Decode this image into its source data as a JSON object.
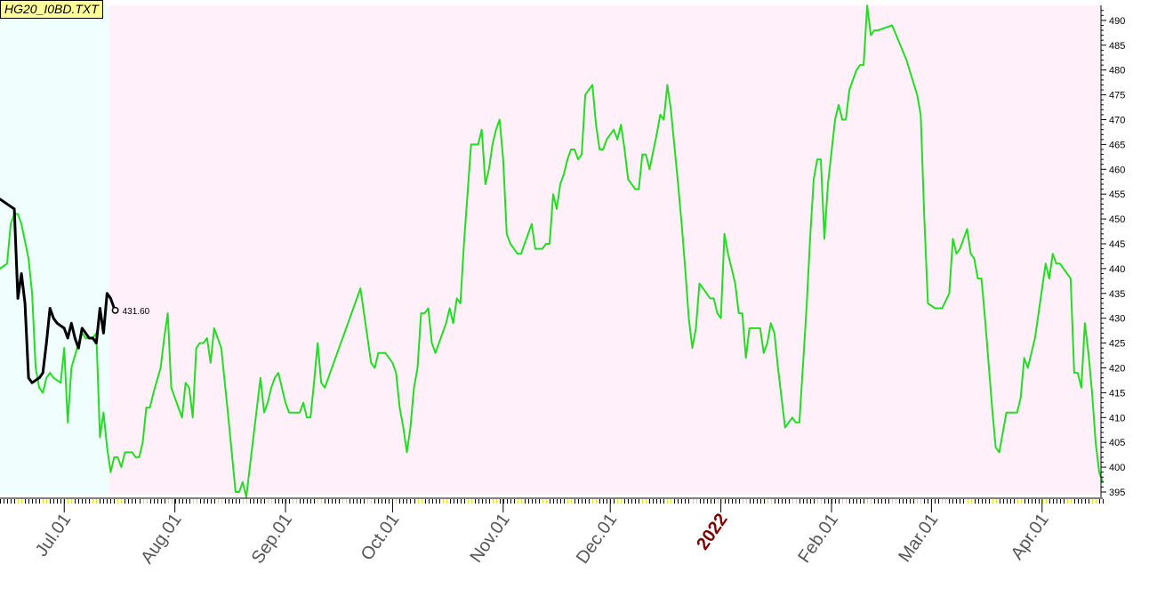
{
  "title": "HG20_I0BD.TXT",
  "chart_data": {
    "type": "line",
    "ylim": [
      395,
      492
    ],
    "y_ticks": [
      395,
      400,
      405,
      410,
      415,
      420,
      425,
      430,
      435,
      440,
      445,
      450,
      455,
      460,
      465,
      470,
      475,
      480,
      485,
      490
    ],
    "x_labels": [
      {
        "label": "Jul.01",
        "day": 0
      },
      {
        "label": "Aug.01",
        "day": 31
      },
      {
        "label": "Sep.01",
        "day": 62
      },
      {
        "label": "Oct.01",
        "day": 92
      },
      {
        "label": "Nov.01",
        "day": 123
      },
      {
        "label": "Dec.01",
        "day": 153
      },
      {
        "label": "2022",
        "day": 184,
        "year": true
      },
      {
        "label": "Feb.01",
        "day": 215
      },
      {
        "label": "Mar.01",
        "day": 243
      },
      {
        "label": "Apr.01",
        "day": 274
      }
    ],
    "colors": {
      "main_series": "#22dd22",
      "overlay_series": "#000000",
      "background_main": "#fff0fa",
      "background_overlay": "#f0fffe"
    },
    "last_value_label": "431.60",
    "series": [
      {
        "color": "#22dd22",
        "points": [
          [
            -18,
            440
          ],
          [
            -16,
            441
          ],
          [
            -15,
            449
          ],
          [
            -14,
            451
          ],
          [
            -13,
            451
          ],
          [
            -12,
            449
          ],
          [
            -10,
            442
          ],
          [
            -9,
            435
          ],
          [
            -8,
            420
          ],
          [
            -7,
            416
          ],
          [
            -6,
            415
          ],
          [
            -5,
            418
          ],
          [
            -4,
            419
          ],
          [
            -3,
            418
          ],
          [
            -1,
            417
          ],
          [
            0,
            424
          ],
          [
            1,
            409
          ],
          [
            2,
            420
          ],
          [
            4,
            425
          ],
          [
            5,
            427
          ],
          [
            6,
            426
          ],
          [
            7,
            426
          ],
          [
            8,
            426
          ],
          [
            9,
            427
          ],
          [
            10,
            406
          ],
          [
            11,
            411
          ],
          [
            12,
            404
          ],
          [
            13,
            399
          ],
          [
            14,
            402
          ],
          [
            15,
            402
          ],
          [
            16,
            400
          ],
          [
            17,
            403
          ],
          [
            18,
            403
          ],
          [
            19,
            403
          ],
          [
            20,
            402
          ],
          [
            21,
            402
          ],
          [
            22,
            405
          ],
          [
            23,
            412
          ],
          [
            24,
            412
          ],
          [
            25,
            415
          ],
          [
            27,
            420
          ],
          [
            28,
            426
          ],
          [
            29,
            431
          ],
          [
            30,
            416
          ],
          [
            31,
            414
          ],
          [
            32,
            412
          ],
          [
            33,
            410
          ],
          [
            34,
            417
          ],
          [
            35,
            416
          ],
          [
            36,
            410
          ],
          [
            37,
            424
          ],
          [
            38,
            425
          ],
          [
            39,
            425
          ],
          [
            40,
            426
          ],
          [
            41,
            421
          ],
          [
            42,
            428
          ],
          [
            43,
            426
          ],
          [
            44,
            424
          ],
          [
            46,
            410
          ],
          [
            48,
            395
          ],
          [
            49,
            395
          ],
          [
            50,
            397
          ],
          [
            51,
            394
          ],
          [
            52,
            400
          ],
          [
            53,
            406
          ],
          [
            55,
            418
          ],
          [
            56,
            411
          ],
          [
            57,
            413
          ],
          [
            58,
            416
          ],
          [
            59,
            418
          ],
          [
            60,
            419
          ],
          [
            61,
            416
          ],
          [
            62,
            413
          ],
          [
            63,
            411
          ],
          [
            64,
            411
          ],
          [
            65,
            411
          ],
          [
            66,
            411
          ],
          [
            67,
            413
          ],
          [
            68,
            410
          ],
          [
            69,
            410
          ],
          [
            70,
            417
          ],
          [
            71,
            425
          ],
          [
            72,
            417
          ],
          [
            73,
            416
          ],
          [
            74,
            418
          ],
          [
            75,
            420
          ],
          [
            77,
            424
          ],
          [
            79,
            428
          ],
          [
            81,
            432
          ],
          [
            82,
            434
          ],
          [
            83,
            436
          ],
          [
            84,
            431
          ],
          [
            85,
            426
          ],
          [
            86,
            421
          ],
          [
            87,
            420
          ],
          [
            88,
            423
          ],
          [
            89,
            423
          ],
          [
            90,
            423
          ],
          [
            91,
            422
          ],
          [
            92,
            421
          ],
          [
            93,
            419
          ],
          [
            94,
            412
          ],
          [
            95,
            408
          ],
          [
            96,
            403
          ],
          [
            97,
            408
          ],
          [
            98,
            416
          ],
          [
            99,
            420
          ],
          [
            100,
            431
          ],
          [
            101,
            431
          ],
          [
            102,
            432
          ],
          [
            103,
            425
          ],
          [
            104,
            423
          ],
          [
            105,
            425
          ],
          [
            107,
            429
          ],
          [
            108,
            432
          ],
          [
            109,
            429
          ],
          [
            110,
            434
          ],
          [
            111,
            433
          ],
          [
            112,
            445
          ],
          [
            114,
            465
          ],
          [
            115,
            465
          ],
          [
            116,
            465
          ],
          [
            117,
            468
          ],
          [
            118,
            457
          ],
          [
            119,
            460
          ],
          [
            120,
            465
          ],
          [
            121,
            468
          ],
          [
            122,
            470
          ],
          [
            123,
            462
          ],
          [
            124,
            447
          ],
          [
            125,
            445
          ],
          [
            127,
            443
          ],
          [
            128,
            443
          ],
          [
            129,
            445
          ],
          [
            130,
            447
          ],
          [
            131,
            449
          ],
          [
            132,
            444
          ],
          [
            133,
            444
          ],
          [
            134,
            444
          ],
          [
            135,
            445
          ],
          [
            136,
            445
          ],
          [
            137,
            455
          ],
          [
            138,
            452
          ],
          [
            139,
            457
          ],
          [
            140,
            459
          ],
          [
            141,
            462
          ],
          [
            142,
            464
          ],
          [
            143,
            464
          ],
          [
            144,
            462
          ],
          [
            145,
            463
          ],
          [
            146,
            475
          ],
          [
            147,
            476
          ],
          [
            148,
            477
          ],
          [
            149,
            469
          ],
          [
            150,
            464
          ],
          [
            151,
            464
          ],
          [
            152,
            466
          ],
          [
            153,
            467
          ],
          [
            154,
            468
          ],
          [
            155,
            466
          ],
          [
            156,
            469
          ],
          [
            157,
            464
          ],
          [
            158,
            458
          ],
          [
            159,
            457
          ],
          [
            160,
            456
          ],
          [
            161,
            456
          ],
          [
            162,
            463
          ],
          [
            163,
            463
          ],
          [
            164,
            460
          ],
          [
            166,
            467
          ],
          [
            167,
            471
          ],
          [
            168,
            470
          ],
          [
            169,
            477
          ],
          [
            170,
            472
          ],
          [
            172,
            457
          ],
          [
            173,
            449
          ],
          [
            174,
            440
          ],
          [
            175,
            430
          ],
          [
            176,
            424
          ],
          [
            177,
            428
          ],
          [
            178,
            437
          ],
          [
            179,
            436
          ],
          [
            181,
            434
          ],
          [
            182,
            434
          ],
          [
            183,
            431
          ],
          [
            184,
            430
          ],
          [
            185,
            447
          ],
          [
            186,
            443
          ],
          [
            187,
            440
          ],
          [
            188,
            437
          ],
          [
            189,
            431
          ],
          [
            190,
            431
          ],
          [
            191,
            422
          ],
          [
            192,
            428
          ],
          [
            193,
            428
          ],
          [
            194,
            428
          ],
          [
            195,
            428
          ],
          [
            196,
            423
          ],
          [
            197,
            425
          ],
          [
            198,
            429
          ],
          [
            199,
            427
          ],
          [
            200,
            420
          ],
          [
            202,
            408
          ],
          [
            203,
            409
          ],
          [
            204,
            410
          ],
          [
            205,
            409
          ],
          [
            206,
            409
          ],
          [
            208,
            432
          ],
          [
            209,
            446
          ],
          [
            210,
            458
          ],
          [
            211,
            462
          ],
          [
            212,
            462
          ],
          [
            213,
            446
          ],
          [
            214,
            457
          ],
          [
            216,
            470
          ],
          [
            217,
            473
          ],
          [
            218,
            470
          ],
          [
            219,
            470
          ],
          [
            220,
            476
          ],
          [
            221,
            478
          ],
          [
            222,
            480
          ],
          [
            223,
            481
          ],
          [
            224,
            481
          ],
          [
            225,
            493
          ],
          [
            226,
            487
          ],
          [
            227,
            488
          ],
          [
            228,
            488
          ],
          [
            232,
            489
          ],
          [
            236,
            482
          ],
          [
            239,
            475
          ],
          [
            240,
            471
          ],
          [
            241,
            450
          ],
          [
            242,
            433
          ],
          [
            244,
            432
          ],
          [
            246,
            432
          ],
          [
            248,
            435
          ],
          [
            249,
            446
          ],
          [
            250,
            443
          ],
          [
            251,
            444
          ],
          [
            252,
            446
          ],
          [
            253,
            448
          ],
          [
            254,
            443
          ],
          [
            255,
            442
          ],
          [
            256,
            438
          ],
          [
            257,
            438
          ],
          [
            258,
            430
          ],
          [
            259,
            421
          ],
          [
            260,
            412
          ],
          [
            261,
            404
          ],
          [
            262,
            403
          ],
          [
            264,
            411
          ],
          [
            266,
            411
          ],
          [
            267,
            411
          ],
          [
            268,
            414
          ],
          [
            269,
            422
          ],
          [
            270,
            420
          ],
          [
            272,
            426
          ],
          [
            273,
            431
          ],
          [
            274,
            436
          ],
          [
            275,
            441
          ],
          [
            276,
            438
          ],
          [
            277,
            443
          ],
          [
            278,
            441
          ],
          [
            279,
            441
          ],
          [
            280,
            440
          ],
          [
            281,
            439
          ],
          [
            282,
            438
          ],
          [
            283,
            419
          ],
          [
            284,
            419
          ],
          [
            285,
            416
          ],
          [
            286,
            429
          ],
          [
            287,
            423
          ],
          [
            288,
            415
          ],
          [
            289,
            405
          ],
          [
            290,
            399
          ],
          [
            291,
            397
          ]
        ]
      },
      {
        "color": "#000000",
        "points": [
          [
            -18,
            454
          ],
          [
            -14,
            452
          ],
          [
            -13,
            434
          ],
          [
            -12,
            439
          ],
          [
            -11,
            433
          ],
          [
            -10,
            418
          ],
          [
            -9,
            417
          ],
          [
            -7,
            418
          ],
          [
            -6,
            419
          ],
          [
            -5,
            425
          ],
          [
            -4,
            432
          ],
          [
            -3,
            430
          ],
          [
            -2,
            429
          ],
          [
            0,
            428
          ],
          [
            1,
            426
          ],
          [
            2,
            429
          ],
          [
            3,
            426
          ],
          [
            4,
            424
          ],
          [
            5,
            428
          ],
          [
            6,
            427
          ],
          [
            7,
            426
          ],
          [
            8,
            426
          ],
          [
            9,
            425
          ],
          [
            10,
            432
          ],
          [
            11,
            427
          ],
          [
            12,
            435
          ],
          [
            13,
            434
          ],
          [
            14,
            432
          ],
          [
            14.3,
            431.6
          ]
        ]
      }
    ]
  }
}
